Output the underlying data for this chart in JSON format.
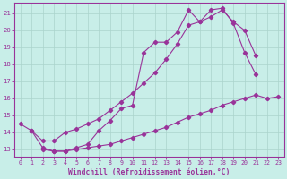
{
  "xlabel": "Windchill (Refroidissement éolien,°C)",
  "bg_color": "#c8eee8",
  "grid_color": "#aad4cc",
  "line_color": "#993399",
  "xlim": [
    -0.5,
    23.5
  ],
  "ylim": [
    12.6,
    21.6
  ],
  "xticks": [
    0,
    1,
    2,
    3,
    4,
    5,
    6,
    7,
    8,
    9,
    10,
    11,
    12,
    13,
    14,
    15,
    16,
    17,
    18,
    19,
    20,
    21,
    22,
    23
  ],
  "yticks": [
    13,
    14,
    15,
    16,
    17,
    18,
    19,
    20,
    21
  ],
  "line1_x": [
    0,
    1,
    2,
    3,
    4,
    5,
    6,
    7,
    8,
    9,
    10,
    11,
    12,
    13,
    14,
    15,
    16,
    17,
    18,
    19,
    20,
    21
  ],
  "line1_y": [
    14.5,
    14.1,
    13.1,
    12.9,
    12.9,
    13.1,
    13.3,
    14.1,
    14.7,
    15.4,
    15.6,
    18.7,
    19.3,
    19.3,
    19.9,
    21.2,
    20.5,
    21.2,
    21.3,
    20.4,
    18.7,
    17.4
  ],
  "line2_x": [
    2,
    3,
    4,
    5,
    6,
    7,
    8,
    9,
    10,
    11,
    12,
    13,
    14,
    15,
    16,
    17,
    18,
    19,
    20,
    21,
    22,
    23
  ],
  "line2_y": [
    13.0,
    12.9,
    12.9,
    13.0,
    13.1,
    13.2,
    13.3,
    13.5,
    13.7,
    13.9,
    14.1,
    14.3,
    14.6,
    14.9,
    15.1,
    15.3,
    15.6,
    15.8,
    16.0,
    16.2,
    16.0,
    16.1
  ],
  "line3_x": [
    1,
    2,
    3,
    4,
    5,
    6,
    7,
    8,
    9,
    10,
    11,
    12,
    13,
    14,
    15,
    16,
    17,
    18,
    19,
    20,
    21
  ],
  "line3_y": [
    14.1,
    13.5,
    13.5,
    14.0,
    14.2,
    14.5,
    14.8,
    15.3,
    15.8,
    16.3,
    16.9,
    17.5,
    18.3,
    19.2,
    20.3,
    20.5,
    20.8,
    21.2,
    20.5,
    20.0,
    18.5
  ]
}
